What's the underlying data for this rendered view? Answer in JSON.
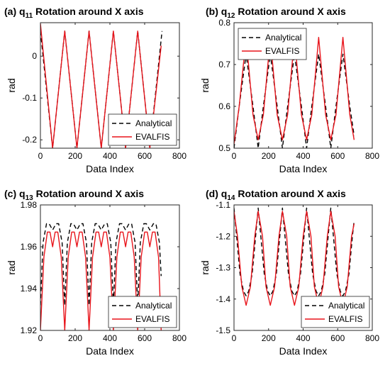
{
  "chart_data": [
    {
      "type": "line",
      "title_prefix": "(a) q",
      "title_sub": "11",
      "title_suffix": " Rotation around X axis",
      "xlabel": "Data Index",
      "ylabel": "rad",
      "xlim": [
        0,
        800
      ],
      "ylim": [
        -0.22,
        0.08
      ],
      "xticks": [
        0,
        200,
        400,
        600,
        800
      ],
      "yticks": [
        -0.2,
        -0.1,
        0
      ],
      "ytick_labels": [
        "-0.2",
        "-0.1",
        "0"
      ],
      "legend_position": "lower-right",
      "series": [
        {
          "name": "Analytical",
          "style": "dashed",
          "color": "#000000",
          "x": [
            0,
            70,
            140,
            210,
            280,
            350,
            420,
            490,
            560,
            630,
            700
          ],
          "y": [
            0.06,
            -0.22,
            0.06,
            -0.22,
            0.06,
            -0.22,
            0.06,
            -0.22,
            0.06,
            -0.22,
            0.06
          ]
        },
        {
          "name": "EVALFIS",
          "style": "solid",
          "color": "#e8141b",
          "x": [
            0,
            70,
            140,
            210,
            280,
            350,
            420,
            490,
            560,
            630,
            695
          ],
          "y": [
            0.078,
            -0.22,
            0.06,
            -0.22,
            0.06,
            -0.22,
            0.06,
            -0.22,
            0.06,
            -0.22,
            0.025
          ]
        }
      ]
    },
    {
      "type": "line",
      "title_prefix": "(b) q",
      "title_sub": "12",
      "title_suffix": " Rotation around X axis",
      "xlabel": "Data Index",
      "ylabel": "rad",
      "xlim": [
        0,
        800
      ],
      "ylim": [
        0.5,
        0.8
      ],
      "xticks": [
        0,
        200,
        400,
        600,
        800
      ],
      "yticks": [
        0.5,
        0.6,
        0.7,
        0.8
      ],
      "ytick_labels": [
        "0.5",
        "0.6",
        "0.7",
        "0.8"
      ],
      "legend_position": "top-left",
      "series": [
        {
          "name": "Analytical",
          "style": "dashed",
          "color": "#000000",
          "x": [
            0,
            30,
            70,
            110,
            140,
            170,
            210,
            250,
            280,
            310,
            350,
            390,
            420,
            450,
            490,
            530,
            560,
            590,
            630,
            670,
            695
          ],
          "y": [
            0.5,
            0.6,
            0.725,
            0.6,
            0.5,
            0.6,
            0.725,
            0.6,
            0.5,
            0.6,
            0.725,
            0.6,
            0.5,
            0.6,
            0.725,
            0.6,
            0.5,
            0.6,
            0.725,
            0.6,
            0.53
          ]
        },
        {
          "name": "EVALFIS",
          "style": "solid",
          "color": "#e8141b",
          "x": [
            0,
            30,
            70,
            110,
            140,
            170,
            210,
            250,
            280,
            310,
            350,
            390,
            420,
            450,
            490,
            530,
            560,
            590,
            630,
            670,
            695
          ],
          "y": [
            0.51,
            0.6,
            0.765,
            0.58,
            0.52,
            0.58,
            0.765,
            0.58,
            0.52,
            0.58,
            0.765,
            0.58,
            0.52,
            0.58,
            0.765,
            0.58,
            0.52,
            0.58,
            0.765,
            0.58,
            0.52
          ]
        }
      ]
    },
    {
      "type": "line",
      "title_prefix": "(c) q",
      "title_sub": "13",
      "title_suffix": " Rotation around X axis",
      "xlabel": "Data Index",
      "ylabel": "rad",
      "xlim": [
        0,
        800
      ],
      "ylim": [
        1.92,
        1.98
      ],
      "xticks": [
        0,
        200,
        400,
        600,
        800
      ],
      "yticks": [
        1.92,
        1.94,
        1.96,
        1.98
      ],
      "ytick_labels": [
        "1.92",
        "1.94",
        "1.96",
        "1.98"
      ],
      "legend_position": "lower-right",
      "series": [
        {
          "name": "Analytical",
          "style": "dashed",
          "color": "#000000",
          "x": [
            0,
            15,
            35,
            50,
            70,
            90,
            105,
            125,
            140,
            155,
            175,
            190,
            210,
            230,
            245,
            265,
            280,
            295,
            315,
            330,
            350,
            370,
            385,
            405,
            420,
            435,
            455,
            470,
            490,
            510,
            525,
            545,
            560,
            575,
            595,
            610,
            630,
            650,
            665,
            685,
            695
          ],
          "y": [
            1.932,
            1.962,
            1.971,
            1.971,
            1.968,
            1.971,
            1.971,
            1.962,
            1.932,
            1.962,
            1.971,
            1.971,
            1.968,
            1.971,
            1.971,
            1.962,
            1.932,
            1.962,
            1.971,
            1.971,
            1.968,
            1.971,
            1.971,
            1.962,
            1.932,
            1.962,
            1.971,
            1.971,
            1.968,
            1.971,
            1.971,
            1.962,
            1.932,
            1.962,
            1.971,
            1.971,
            1.968,
            1.971,
            1.971,
            1.962,
            1.946
          ]
        },
        {
          "name": "EVALFIS",
          "style": "solid",
          "color": "#e8141b",
          "x": [
            0,
            20,
            40,
            55,
            70,
            85,
            100,
            120,
            140,
            160,
            180,
            195,
            210,
            225,
            240,
            260,
            280,
            300,
            320,
            335,
            350,
            365,
            380,
            400,
            420,
            440,
            460,
            475,
            490,
            505,
            520,
            540,
            560,
            580,
            600,
            615,
            630,
            645,
            660,
            680,
            695
          ],
          "y": [
            1.92,
            1.955,
            1.967,
            1.967,
            1.96,
            1.967,
            1.967,
            1.955,
            1.92,
            1.955,
            1.967,
            1.967,
            1.96,
            1.967,
            1.967,
            1.955,
            1.92,
            1.955,
            1.967,
            1.967,
            1.96,
            1.967,
            1.967,
            1.955,
            1.92,
            1.955,
            1.967,
            1.967,
            1.96,
            1.967,
            1.967,
            1.955,
            1.92,
            1.955,
            1.967,
            1.967,
            1.96,
            1.967,
            1.967,
            1.955,
            1.92
          ]
        }
      ]
    },
    {
      "type": "line",
      "title_prefix": "(d) q",
      "title_sub": "14",
      "title_suffix": " Rotation around X axis",
      "xlabel": "Data Index",
      "ylabel": "rad",
      "xlim": [
        0,
        800
      ],
      "ylim": [
        -1.5,
        -1.1
      ],
      "xticks": [
        0,
        200,
        400,
        600,
        800
      ],
      "yticks": [
        -1.5,
        -1.4,
        -1.3,
        -1.2,
        -1.1
      ],
      "ytick_labels": [
        "-1.5",
        "-1.4",
        "-1.3",
        "-1.2",
        "-1.1"
      ],
      "legend_position": "lower-right",
      "series": [
        {
          "name": "Analytical",
          "style": "dashed",
          "color": "#000000",
          "x": [
            0,
            15,
            35,
            55,
            70,
            85,
            105,
            125,
            140,
            155,
            175,
            195,
            210,
            225,
            245,
            265,
            280,
            295,
            315,
            335,
            350,
            365,
            385,
            405,
            420,
            435,
            455,
            475,
            490,
            505,
            525,
            545,
            560,
            575,
            595,
            615,
            630,
            645,
            665,
            685,
            695
          ],
          "y": [
            -1.11,
            -1.2,
            -1.32,
            -1.375,
            -1.39,
            -1.375,
            -1.32,
            -1.2,
            -1.11,
            -1.2,
            -1.32,
            -1.375,
            -1.39,
            -1.375,
            -1.32,
            -1.2,
            -1.11,
            -1.2,
            -1.32,
            -1.375,
            -1.39,
            -1.375,
            -1.32,
            -1.2,
            -1.11,
            -1.2,
            -1.32,
            -1.375,
            -1.39,
            -1.375,
            -1.32,
            -1.2,
            -1.11,
            -1.2,
            -1.32,
            -1.375,
            -1.39,
            -1.375,
            -1.32,
            -1.2,
            -1.15
          ]
        },
        {
          "name": "EVALFIS",
          "style": "solid",
          "color": "#e8141b",
          "x": [
            0,
            20,
            45,
            70,
            95,
            120,
            140,
            165,
            185,
            210,
            235,
            260,
            280,
            305,
            325,
            350,
            375,
            400,
            420,
            445,
            465,
            490,
            515,
            540,
            560,
            585,
            605,
            630,
            655,
            680,
            695
          ],
          "y": [
            -1.12,
            -1.2,
            -1.36,
            -1.42,
            -1.36,
            -1.2,
            -1.12,
            -1.2,
            -1.36,
            -1.42,
            -1.36,
            -1.2,
            -1.12,
            -1.2,
            -1.36,
            -1.42,
            -1.36,
            -1.2,
            -1.12,
            -1.2,
            -1.36,
            -1.42,
            -1.36,
            -1.2,
            -1.12,
            -1.2,
            -1.36,
            -1.42,
            -1.36,
            -1.2,
            -1.16
          ]
        }
      ]
    }
  ]
}
